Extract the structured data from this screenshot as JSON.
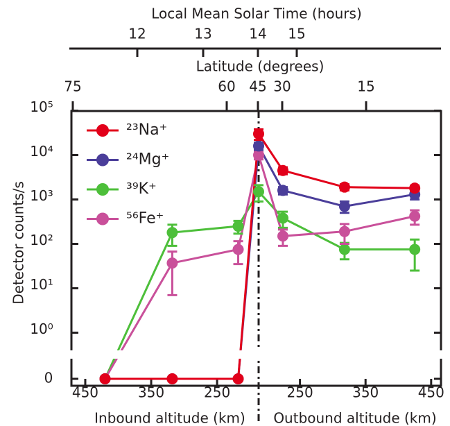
{
  "chart_data": {
    "type": "line",
    "top_axis_title": "Local Mean Solar Time (hours)",
    "top_axis_ticks": [
      12,
      13,
      14,
      15
    ],
    "second_axis_title": "Latitude (degrees)",
    "second_axis_ticks": [
      75,
      60,
      45,
      30,
      15
    ],
    "ylabel": "Detector counts/s",
    "yscale": "log",
    "ylim": [
      1,
      100000
    ],
    "yticks": [
      0,
      {
        "value": 1,
        "label": "10⁰"
      },
      {
        "value": 10,
        "label": "10¹"
      },
      {
        "value": 100,
        "label": "10²"
      },
      {
        "value": 1000,
        "label": "10³"
      },
      {
        "value": 10000,
        "label": "10⁴"
      },
      {
        "value": 100000,
        "label": "10⁵"
      }
    ],
    "xlabel_inbound": "Inbound altitude (km)",
    "xlabel_outbound": "Outbound altitude (km)",
    "xlim_inbound": [
      471,
      187
    ],
    "xlim_outbound": [
      187,
      465
    ],
    "xticks_inbound": [
      450,
      350,
      250
    ],
    "xticks_outbound": [
      250,
      350,
      450
    ],
    "x_inbound": [
      420,
      318,
      218,
      187
    ],
    "x_outbound": [
      224,
      318,
      425
    ],
    "legend": "upper left",
    "series": [
      {
        "name": "²³Na⁺",
        "color": "#e2001a",
        "inbound": [
          0,
          0,
          0,
          30000
        ],
        "outbound": [
          4500,
          1900,
          1800
        ],
        "inbound_errors": [
          null,
          null,
          null,
          8000
        ],
        "outbound_errors": [
          800,
          300,
          250
        ]
      },
      {
        "name": "²⁴Mg⁺",
        "color": "#4b3e9a",
        "inbound": [
          0,
          0,
          0,
          16000
        ],
        "outbound": [
          1600,
          700,
          1300
        ],
        "inbound_errors": [
          null,
          null,
          null,
          3000
        ],
        "outbound_errors": [
          300,
          200,
          300
        ]
      },
      {
        "name": "³⁹K⁺",
        "color": "#4dbf3a",
        "inbound": [
          0,
          180,
          250,
          1500
        ],
        "outbound": [
          380,
          75,
          75
        ],
        "inbound_errors": [
          null,
          90,
          80,
          600
        ],
        "outbound_errors": [
          150,
          30,
          50
        ]
      },
      {
        "name": "⁵⁶Fe⁺",
        "color": "#c9509a",
        "inbound": [
          0,
          37,
          75,
          10000
        ],
        "outbound": [
          150,
          190,
          420
        ],
        "inbound_errors": [
          null,
          30,
          40,
          2000
        ],
        "outbound_errors": [
          60,
          90,
          150
        ]
      }
    ]
  }
}
